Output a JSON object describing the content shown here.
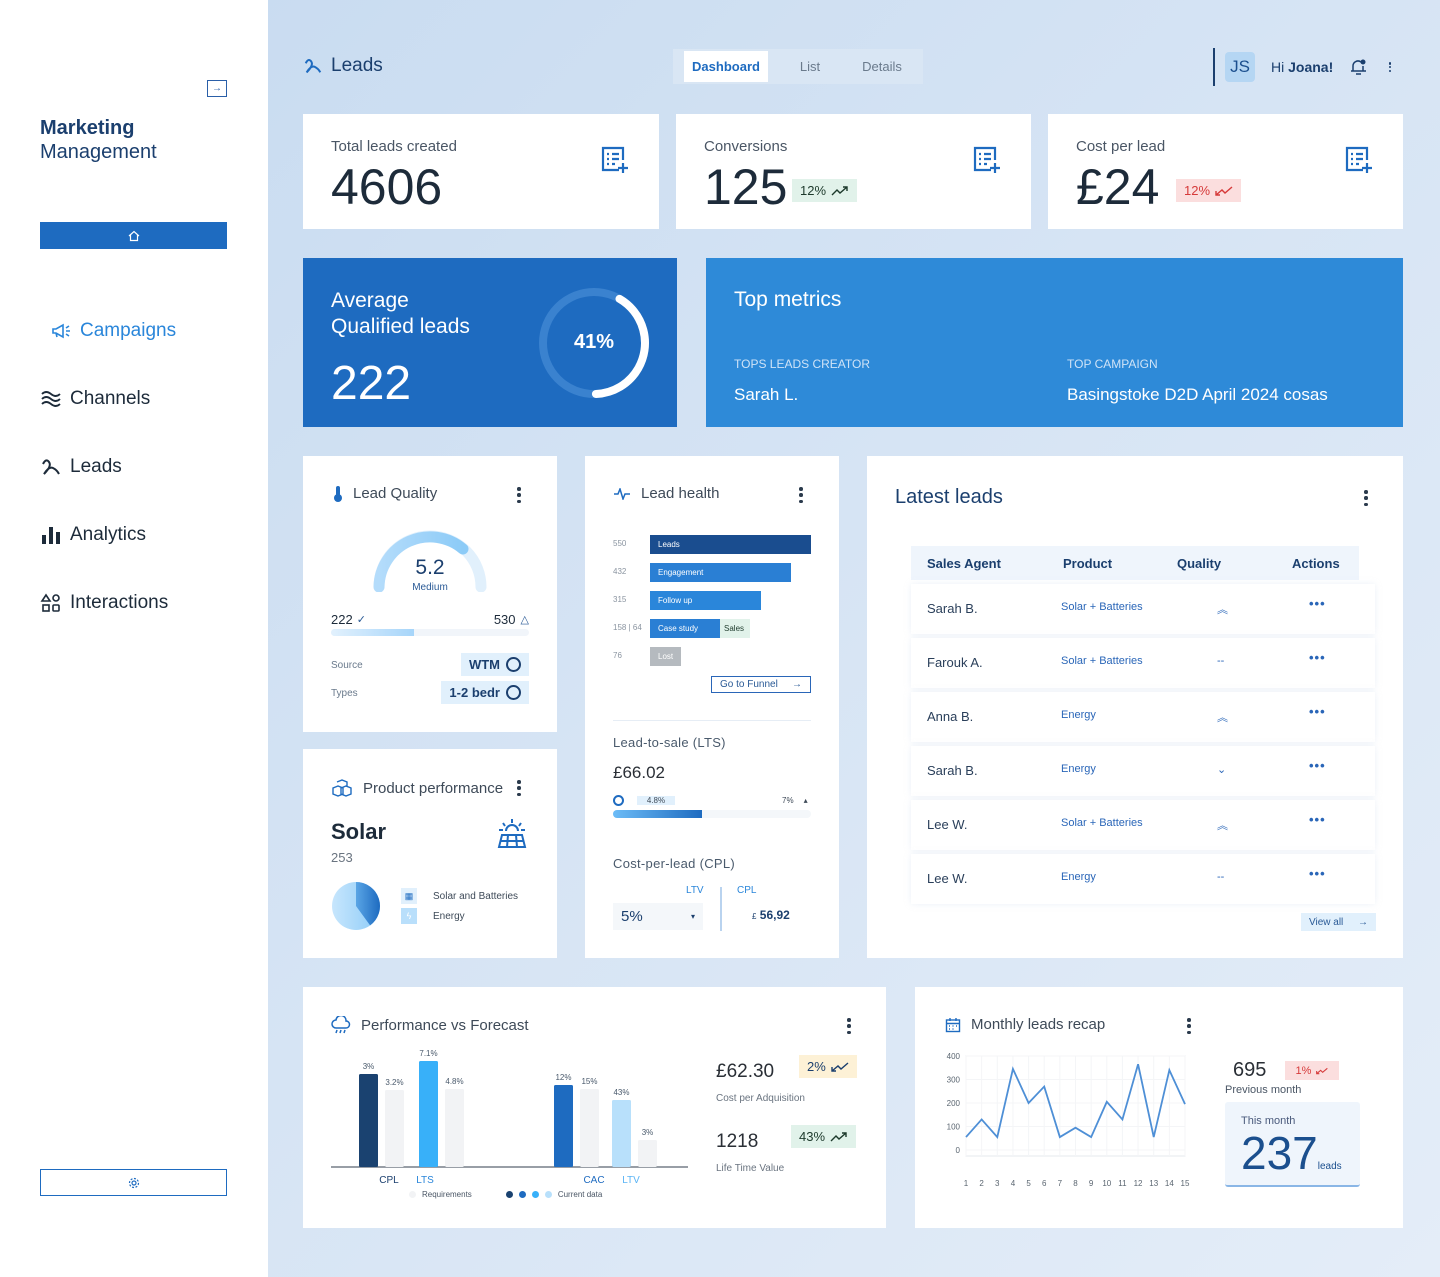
{
  "sidebar": {
    "title_line1": "Marketing",
    "title_line2": "Management",
    "items": [
      {
        "label": "Campaigns",
        "icon": "megaphone-icon",
        "active": true
      },
      {
        "label": "Channels",
        "icon": "waves-icon"
      },
      {
        "label": "Leads",
        "icon": "leads-icon"
      },
      {
        "label": "Analytics",
        "icon": "bar-chart-icon"
      },
      {
        "label": "Interactions",
        "icon": "shapes-icon"
      }
    ]
  },
  "header": {
    "title": "Leads",
    "tabs": [
      "Dashboard",
      "List",
      "Details"
    ],
    "active_tab": "Dashboard",
    "avatar_initials": "JS",
    "greeting": "Hi",
    "user": "Joana!"
  },
  "kpis": [
    {
      "label": "Total leads created",
      "value": "4606"
    },
    {
      "label": "Conversions",
      "value": "125",
      "change": "12%",
      "trend": "up",
      "badge_color": "#e1f2ea"
    },
    {
      "label": "Cost per lead",
      "value": "£24",
      "change": "12%",
      "trend": "down",
      "badge_color": "#fbdede"
    }
  ],
  "avg_qualified": {
    "title_line1": "Average",
    "title_line2": "Qualified leads",
    "value": "222",
    "percent_label": "41%",
    "percent": 41
  },
  "top_metrics": {
    "title": "Top metrics",
    "creator_label": "TOPS LEADS CREATOR",
    "creator": "Sarah L.",
    "campaign_label": "TOP CAMPAIGN",
    "campaign": "Basingstoke D2D April 2024 cosas"
  },
  "lead_quality": {
    "title": "Lead Quality",
    "score": "5.2",
    "level": "Medium",
    "qualified": "222",
    "total": "530",
    "progress": 0.42,
    "source_label": "Source",
    "source": "WTM",
    "types_label": "Types",
    "types": "1-2 bedr"
  },
  "product_performance": {
    "title": "Product performance",
    "product": "Solar",
    "count": "253",
    "legend": [
      "Solar and Batteries",
      "Energy"
    ],
    "share": 0.4
  },
  "lead_health": {
    "title": "Lead health",
    "funnel": [
      {
        "count": "550",
        "label": "Leads",
        "color": "#1a4d8f"
      },
      {
        "count": "432",
        "label": "Engagement",
        "color": "#2a7fd4"
      },
      {
        "count": "315",
        "label": "Follow up",
        "color": "#2a86da"
      },
      {
        "count": "158 | 64",
        "label": "Case study",
        "label2": "Sales",
        "color": "#2a7fd4"
      },
      {
        "count": "76",
        "label": "Lost",
        "color": "#b5babf"
      }
    ],
    "funnel_button": "Go to Funnel",
    "lts_title": "Lead-to-sale (LTS)",
    "lts_value": "£66.02",
    "lts_marker": "4.8%",
    "lts_target": "7%",
    "lts_progress": 0.15,
    "cpl_title": "Cost-per-lead (CPL)",
    "ltv_label": "LTV",
    "ltv_value": "5%",
    "cpl_label": "CPL",
    "cpl_currency": "£",
    "cpl_value": "56,92"
  },
  "latest_leads": {
    "title": "Latest leads",
    "columns": [
      "Sales Agent",
      "Product",
      "Quality",
      "Actions"
    ],
    "rows": [
      {
        "agent": "Sarah B.",
        "product": "Solar + Batteries",
        "quality": "high"
      },
      {
        "agent": "Farouk A.",
        "product": "Solar + Batteries",
        "quality": "neutral"
      },
      {
        "agent": "Anna B.",
        "product": "Energy",
        "quality": "high"
      },
      {
        "agent": "Sarah B.",
        "product": "Energy",
        "quality": "low"
      },
      {
        "agent": "Lee W.",
        "product": "Solar + Batteries",
        "quality": "high"
      },
      {
        "agent": "Lee W.",
        "product": "Energy",
        "quality": "neutral"
      }
    ],
    "view_all": "View all"
  },
  "performance": {
    "title": "Performance vs Forecast",
    "cpa_value": "£62.30",
    "cpa_change": "2%",
    "cpa_label": "Cost per Adquisition",
    "ltv_value": "1218",
    "ltv_change": "43%",
    "ltv_label": "Life Time Value",
    "legend_requirements": "Requirements",
    "legend_current": "Current data"
  },
  "monthly": {
    "title": "Monthly leads recap",
    "previous_value": "695",
    "previous_change": "1%",
    "previous_label": "Previous month",
    "this_label": "This month",
    "this_value": "237",
    "this_unit": "leads"
  },
  "chart_data": [
    {
      "type": "bar",
      "categories": [
        "CPL",
        "LTS",
        "CAC",
        "LTV"
      ],
      "series": [
        {
          "name": "Current data",
          "values": [
            3,
            7.1,
            12,
            43
          ]
        },
        {
          "name": "Requirements",
          "values": [
            3.2,
            4.8,
            15,
            3
          ]
        }
      ],
      "data_labels": [
        "3%",
        "3.2%",
        "7.1%",
        "4.8%",
        "12%",
        "15%",
        "43%",
        "3%"
      ],
      "colors": [
        "#1a4270",
        "#38b0f9",
        "#1e6bc0",
        "#b8e0fb"
      ],
      "requirement_color": "#f2f3f5",
      "legend": "bottom"
    },
    {
      "type": "line",
      "x": [
        1,
        2,
        3,
        4,
        5,
        6,
        7,
        8,
        9,
        10,
        11,
        12,
        13,
        14,
        15
      ],
      "y": [
        55,
        130,
        55,
        345,
        200,
        270,
        55,
        95,
        55,
        205,
        130,
        365,
        55,
        340,
        195
      ],
      "ylim": [
        0,
        400
      ],
      "yticks": [
        0,
        100,
        200,
        300,
        400
      ],
      "grid": true,
      "color": "#4e8fd6"
    }
  ]
}
